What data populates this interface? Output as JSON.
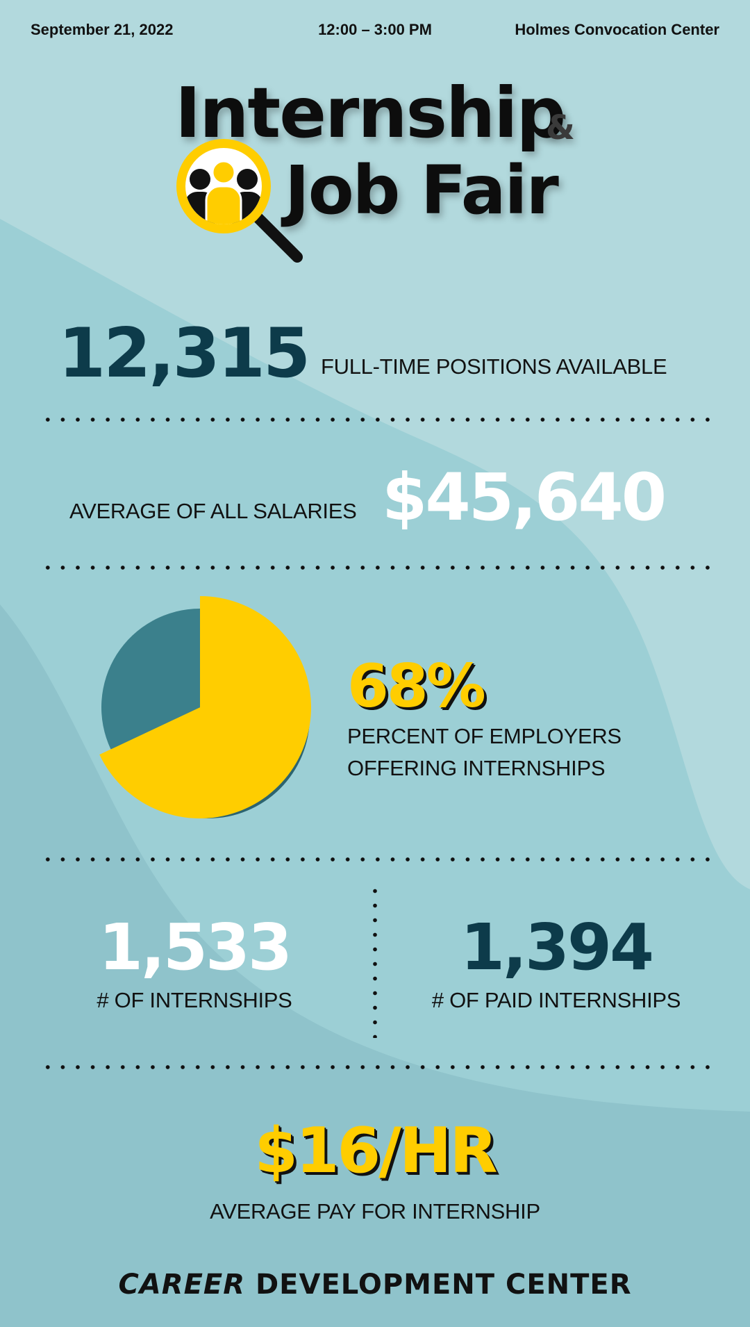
{
  "header": {
    "date": "September 21, 2022",
    "time": "12:00 – 3:00 PM",
    "venue": "Holmes Convocation Center"
  },
  "title": {
    "line1": "Internship",
    "ampersand": "&",
    "line2": "Job Fair",
    "logo_icon": "magnifier-people-icon"
  },
  "stats": {
    "positions": {
      "value": "12,315",
      "label": "FULL-TIME POSITIONS AVAILABLE"
    },
    "salary": {
      "value": "$45,640",
      "label": "AVERAGE OF ALL SALARIES"
    },
    "employers": {
      "value": "68%",
      "label_line1": "PERCENT OF EMPLOYERS",
      "label_line2": "OFFERING INTERNSHIPS"
    },
    "internships": {
      "value": "1,533",
      "label": "# OF INTERNSHIPS"
    },
    "paid_internships": {
      "value": "1,394",
      "label": "# OF PAID INTERNSHIPS"
    },
    "pay": {
      "value": "$16/HR",
      "label": "AVERAGE PAY FOR INTERNSHIP"
    }
  },
  "chart_data": {
    "type": "pie",
    "values": [
      68,
      32
    ],
    "colors": [
      "#ffcd00",
      "#3b808c"
    ]
  },
  "footer": {
    "word1": "CAREER",
    "word2": "DEVELOPMENT CENTER"
  },
  "colors": {
    "dark_teal": "#0d3b4a",
    "yellow": "#ffcd00",
    "pie_teal": "#3b808c",
    "bg_light": "#b2d9dd",
    "bg_mid": "#9ccfd5",
    "bg_dark": "#8fc3cb"
  }
}
